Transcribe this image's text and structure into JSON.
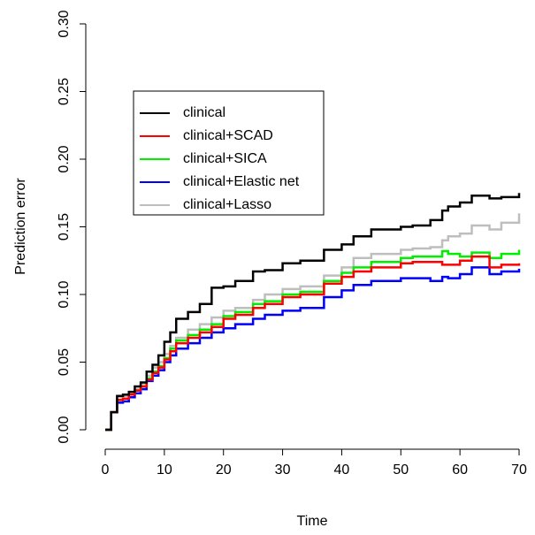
{
  "chart_data": {
    "type": "line",
    "step": true,
    "x_label": "Time",
    "y_label": "Prediction error",
    "x": [
      0,
      1,
      2,
      3,
      4,
      5,
      6,
      7,
      8,
      9,
      10,
      11,
      12,
      14,
      16,
      18,
      20,
      22,
      25,
      27,
      30,
      33,
      37,
      40,
      42,
      45,
      50,
      52,
      55,
      57,
      58,
      60,
      62,
      65,
      67,
      70
    ],
    "series": [
      {
        "name": "clinical",
        "color": "#000000",
        "values": [
          0,
          0.013,
          0.025,
          0.026,
          0.028,
          0.032,
          0.035,
          0.043,
          0.048,
          0.055,
          0.065,
          0.072,
          0.082,
          0.087,
          0.093,
          0.105,
          0.106,
          0.11,
          0.117,
          0.118,
          0.123,
          0.125,
          0.133,
          0.137,
          0.143,
          0.148,
          0.15,
          0.151,
          0.155,
          0.162,
          0.165,
          0.168,
          0.173,
          0.171,
          0.172,
          0.175
        ]
      },
      {
        "name": "clinical+SCAD",
        "color": "#ff0000",
        "values": [
          0,
          0.013,
          0.022,
          0.023,
          0.026,
          0.029,
          0.032,
          0.037,
          0.042,
          0.046,
          0.052,
          0.058,
          0.064,
          0.068,
          0.072,
          0.076,
          0.082,
          0.085,
          0.09,
          0.093,
          0.098,
          0.1,
          0.108,
          0.113,
          0.117,
          0.12,
          0.123,
          0.124,
          0.124,
          0.122,
          0.122,
          0.125,
          0.128,
          0.12,
          0.122,
          0.123
        ]
      },
      {
        "name": "clinical+SICA",
        "color": "#00ee00",
        "values": [
          0,
          0.013,
          0.022,
          0.023,
          0.026,
          0.029,
          0.032,
          0.038,
          0.043,
          0.047,
          0.053,
          0.06,
          0.066,
          0.07,
          0.074,
          0.078,
          0.084,
          0.087,
          0.093,
          0.095,
          0.1,
          0.102,
          0.11,
          0.116,
          0.12,
          0.124,
          0.127,
          0.128,
          0.128,
          0.132,
          0.13,
          0.128,
          0.131,
          0.127,
          0.13,
          0.133
        ]
      },
      {
        "name": "clinical+Elastic net",
        "color": "#0000ff",
        "values": [
          0,
          0.013,
          0.02,
          0.021,
          0.024,
          0.027,
          0.03,
          0.036,
          0.04,
          0.044,
          0.05,
          0.055,
          0.06,
          0.064,
          0.068,
          0.072,
          0.075,
          0.078,
          0.082,
          0.085,
          0.088,
          0.09,
          0.098,
          0.103,
          0.107,
          0.11,
          0.112,
          0.112,
          0.11,
          0.113,
          0.112,
          0.115,
          0.12,
          0.115,
          0.117,
          0.119
        ]
      },
      {
        "name": "clinical+Lasso",
        "color": "#bebebe",
        "values": [
          0,
          0.013,
          0.024,
          0.025,
          0.027,
          0.03,
          0.034,
          0.04,
          0.046,
          0.05,
          0.056,
          0.062,
          0.068,
          0.074,
          0.078,
          0.083,
          0.088,
          0.09,
          0.096,
          0.1,
          0.104,
          0.106,
          0.114,
          0.12,
          0.127,
          0.13,
          0.133,
          0.134,
          0.135,
          0.14,
          0.143,
          0.145,
          0.151,
          0.148,
          0.153,
          0.16
        ]
      }
    ],
    "xlim": [
      0,
      70
    ],
    "xticks": [
      0,
      10,
      20,
      30,
      40,
      50,
      60,
      70
    ],
    "ylim": [
      0,
      0.3
    ],
    "yticks": [
      {
        "value": 0,
        "label": "0.00"
      },
      {
        "value": 0.05,
        "label": "0.05"
      },
      {
        "value": 0.1,
        "label": "0.10"
      },
      {
        "value": 0.15,
        "label": "0.15"
      },
      {
        "value": 0.2,
        "label": "0.20"
      },
      {
        "value": 0.25,
        "label": "0.25"
      },
      {
        "value": 0.3,
        "label": "0.30"
      }
    ],
    "legend": "upper-left",
    "grid": false
  }
}
